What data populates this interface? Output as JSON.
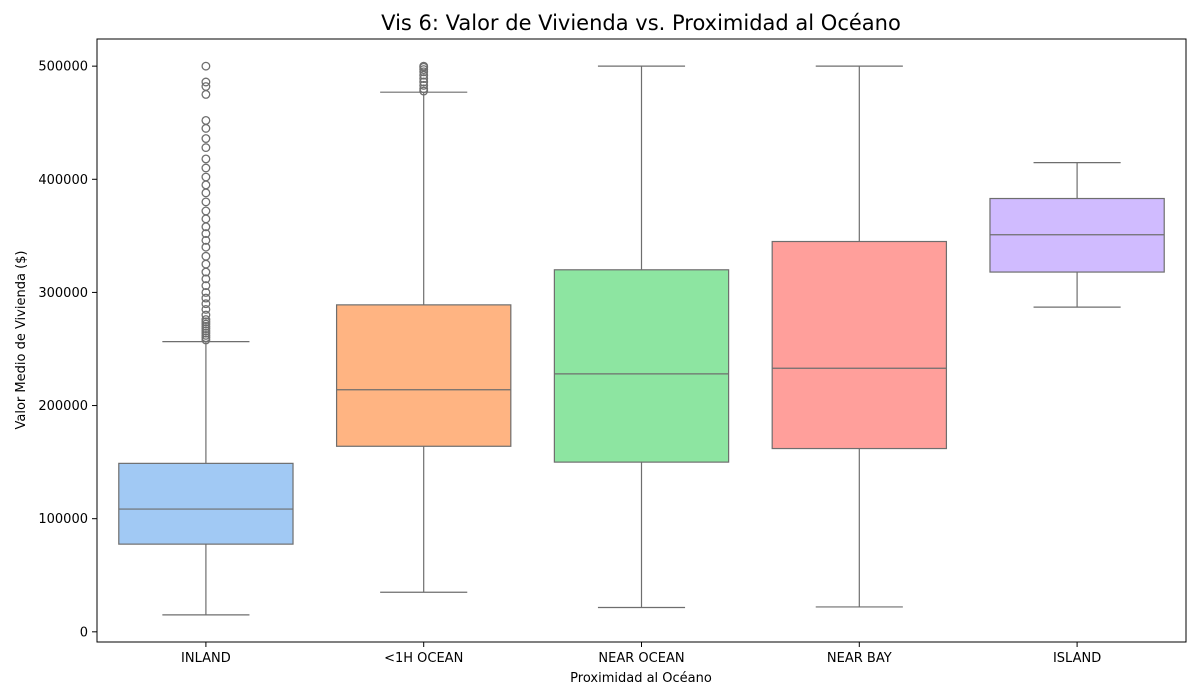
{
  "chart_data": {
    "type": "box",
    "title": "Vis 6: Valor de Vivienda vs. Proximidad al Océano",
    "xlabel": "Proximidad al Océano",
    "ylabel": "Valor Medio de Vivienda ($)",
    "ylim": [
      -9000,
      524000
    ],
    "yticks": [
      0,
      100000,
      200000,
      300000,
      400000,
      500000
    ],
    "ytick_labels": [
      "0",
      "100000",
      "200000",
      "300000",
      "400000",
      "500000"
    ],
    "grid": false,
    "legend": "none",
    "categories": [
      "INLAND",
      "<1H OCEAN",
      "NEAR OCEAN",
      "NEAR BAY",
      "ISLAND"
    ],
    "boxes": [
      {
        "category": "INLAND",
        "color": "#a1c9f4",
        "whisker_low": 15000,
        "q1": 77500,
        "median": 108500,
        "q3": 148900,
        "whisker_high": 256500,
        "outliers": [
          258000,
          260000,
          262000,
          264000,
          266000,
          268000,
          270000,
          272000,
          274000,
          276000,
          280000,
          285000,
          290000,
          295000,
          300000,
          306000,
          312000,
          318000,
          325000,
          332000,
          340000,
          346000,
          352000,
          358000,
          365000,
          372000,
          380000,
          388000,
          395000,
          402000,
          410000,
          418000,
          428000,
          436000,
          445000,
          452000,
          475000,
          482000,
          486000,
          500000
        ]
      },
      {
        "category": "<1H OCEAN",
        "color": "#ffb482",
        "whisker_low": 35000,
        "q1": 164000,
        "median": 214000,
        "q3": 289000,
        "whisker_high": 477000,
        "outliers": [
          478000,
          480000,
          483000,
          486000,
          489000,
          492000,
          495000,
          497000,
          499000,
          500000
        ]
      },
      {
        "category": "NEAR OCEAN",
        "color": "#8de5a1",
        "whisker_low": 21500,
        "q1": 150000,
        "median": 228000,
        "q3": 320000,
        "whisker_high": 500000,
        "outliers": []
      },
      {
        "category": "NEAR BAY",
        "color": "#ff9f9b",
        "whisker_low": 22000,
        "q1": 162000,
        "median": 233000,
        "q3": 345000,
        "whisker_high": 500000,
        "outliers": []
      },
      {
        "category": "ISLAND",
        "color": "#d0bbff",
        "whisker_low": 287000,
        "q1": 318000,
        "median": 351000,
        "q3": 383000,
        "whisker_high": 414700,
        "outliers": []
      }
    ]
  }
}
